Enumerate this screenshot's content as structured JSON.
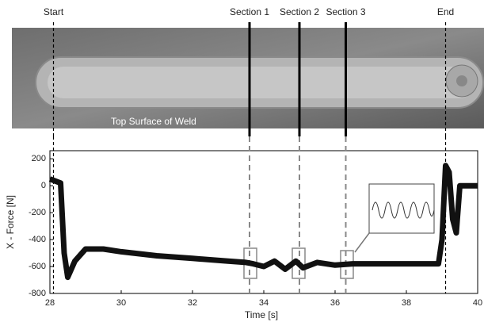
{
  "chart_data": {
    "type": "line",
    "photo_caption": "Top Surface of Weld",
    "x_label": "Time [s]",
    "y_label": "X - Force [N]",
    "xlim": [
      28,
      40
    ],
    "xticks": [
      28,
      30,
      32,
      34,
      36,
      38,
      40
    ],
    "ylim": [
      -800,
      260
    ],
    "yticks": [
      -800,
      -600,
      -400,
      -200,
      0,
      200
    ],
    "markers": [
      {
        "label": "Start",
        "x": 28.1
      },
      {
        "label": "Section 1",
        "x": 33.6
      },
      {
        "label": "Section 2",
        "x": 35.0
      },
      {
        "label": "Section 3",
        "x": 36.3
      },
      {
        "label": "End",
        "x": 39.1
      }
    ],
    "series": [
      {
        "color": "#111111",
        "x": [
          28.0,
          28.3,
          28.4,
          28.5,
          28.7,
          29.0,
          29.5,
          30.0,
          31.0,
          32.0,
          33.0,
          33.5,
          33.7,
          34.0,
          34.3,
          34.6,
          34.9,
          35.1,
          35.5,
          36.0,
          36.5,
          37.0,
          38.0,
          38.9,
          39.0,
          39.1,
          39.2,
          39.3,
          39.4,
          39.5,
          40.0
        ],
        "values": [
          50,
          20,
          -500,
          -680,
          -560,
          -470,
          -470,
          -490,
          -520,
          -540,
          -560,
          -570,
          -580,
          -600,
          -560,
          -620,
          -560,
          -610,
          -570,
          -590,
          -580,
          -580,
          -580,
          -580,
          -400,
          150,
          100,
          -250,
          -350,
          0,
          0
        ]
      }
    ]
  }
}
